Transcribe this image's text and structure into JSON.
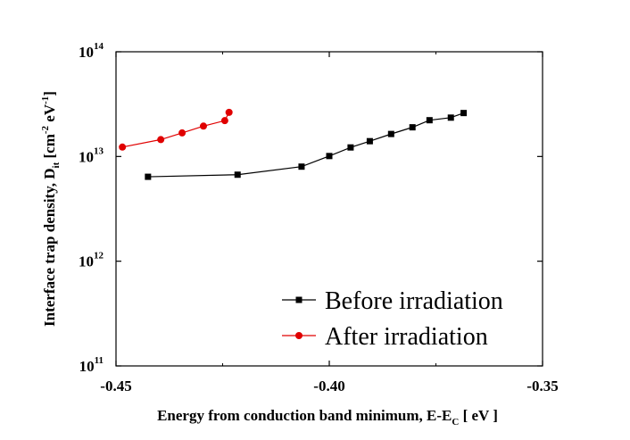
{
  "chart_data": {
    "type": "scatter",
    "title": "",
    "xlabel": {
      "main": "Energy from conduction band minimum, E-E",
      "sub": "C",
      "unit": " [ eV ]"
    },
    "ylabel": {
      "main": "Interface trap density, D",
      "sub": "it",
      "unit_open": " [cm",
      "unit_exp1": "-2",
      "unit_mid": " eV",
      "unit_exp2": "-1",
      "unit_close": "]"
    },
    "xlim": [
      -0.45,
      -0.35
    ],
    "ylim": [
      100000000000,
      100000000000000
    ],
    "yscale": "log",
    "xticks": [
      {
        "value": -0.45,
        "label": "-0.45"
      },
      {
        "value": -0.4,
        "label": "-0.40"
      },
      {
        "value": -0.35,
        "label": "-0.35"
      }
    ],
    "yticks": [
      {
        "value": 100000000000,
        "base": "10",
        "exp": "11"
      },
      {
        "value": 1000000000000,
        "base": "10",
        "exp": "12"
      },
      {
        "value": 10000000000000,
        "base": "10",
        "exp": "13"
      },
      {
        "value": 100000000000000,
        "base": "10",
        "exp": "14"
      }
    ],
    "legend_position": "bottom-right",
    "series": [
      {
        "name": "Before irradiation",
        "color": "#000000",
        "marker": "square",
        "x": [
          -0.4425,
          -0.4215,
          -0.4065,
          -0.4,
          -0.395,
          -0.3905,
          -0.3855,
          -0.3805,
          -0.3765,
          -0.3715,
          -0.3685
        ],
        "y": [
          6400000000000,
          6700000000000,
          8000000000000,
          10100000000000,
          12200000000000,
          14000000000000,
          16400000000000,
          19000000000000,
          22200000000000,
          23500000000000,
          26000000000000
        ]
      },
      {
        "name": "After irradiation",
        "color": "#e00000",
        "marker": "circle",
        "x": [
          -0.4485,
          -0.4395,
          -0.4345,
          -0.4295,
          -0.4245,
          -0.4235
        ],
        "y": [
          12300000000000,
          14500000000000,
          16800000000000,
          19500000000000,
          22000000000000,
          26400000000000
        ]
      }
    ]
  }
}
